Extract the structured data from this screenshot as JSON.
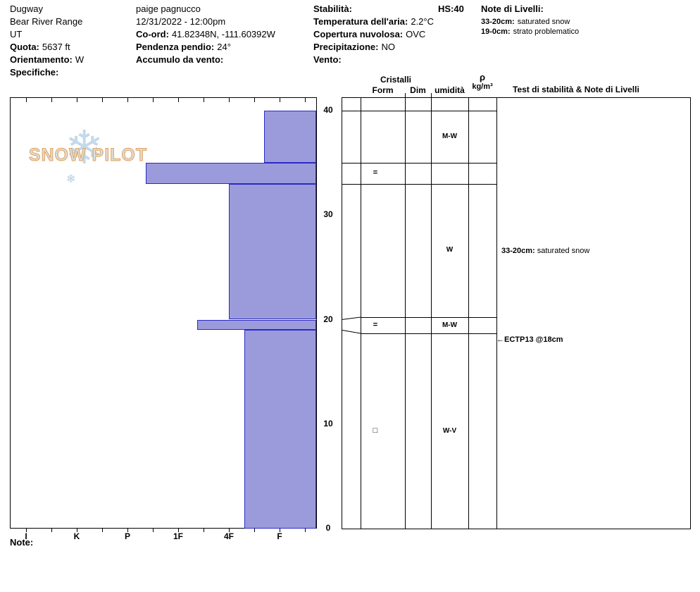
{
  "header": {
    "location": {
      "site": "Dugway",
      "range": "Bear River Range",
      "state": "UT",
      "elevation_label": "Quota:",
      "elevation": "5637 ft",
      "aspect_label": "Orientamento:",
      "aspect": "W",
      "specs_label": "Specifiche:"
    },
    "observation": {
      "observer": "paige pagnucco",
      "datetime": "12/31/2022 - 12:00pm",
      "coord_label": "Co-ord:",
      "coord": "41.82348N, -111.60392W",
      "slope_label": "Pendenza pendio:",
      "slope": "24°",
      "wind_loading_label": "Accumulo da vento:"
    },
    "conditions": {
      "stability_label": "Stabilità:",
      "hs_label": "HS:40",
      "air_temp_label": "Temperatura dell'aria:",
      "air_temp": "2.2°C",
      "sky_label": "Copertura nuvolosa:",
      "sky": "OVC",
      "precip_label": "Precipitazione:",
      "precip": "NO",
      "wind_label": "Vento:"
    },
    "layer_notes": {
      "title": "Note di Livelli:",
      "notes": [
        {
          "range": "33-20cm:",
          "text": "saturated snow"
        },
        {
          "range": "19-0cm:",
          "text": "strato problematico"
        }
      ]
    }
  },
  "table": {
    "crystals_group": "Cristalli",
    "form": "Form",
    "dim": "Dim",
    "moisture": "umidità",
    "density_symbol": "ρ",
    "density_unit": "kg/m³",
    "tests_header": "Test di stabilità & Note di Livelli"
  },
  "chart_data": {
    "type": "bar",
    "title": "Snow profile hand-hardness by depth",
    "depth_unit": "cm",
    "depth_max": 40,
    "depth_ticks": [
      0,
      10,
      20,
      30,
      40
    ],
    "hs_total_cm": 40,
    "hardness_categories": [
      "I",
      "K",
      "P",
      "1F",
      "4F",
      "F"
    ],
    "bar_fill": "#9b9bdc",
    "bar_border": "#2a2ac4",
    "layers": [
      {
        "top_cm": 40,
        "bottom_cm": 35,
        "hardness": "F+",
        "hardness_pos": 4.7,
        "grain_form_symbol": "",
        "grain_size": "",
        "moisture": "M-W",
        "density": ""
      },
      {
        "top_cm": 35,
        "bottom_cm": 33,
        "hardness": "P",
        "hardness_pos": 2.36,
        "grain_form_symbol": "=",
        "grain_size": "",
        "moisture": "",
        "density": ""
      },
      {
        "top_cm": 33,
        "bottom_cm": 20,
        "hardness": "4F",
        "hardness_pos": 4.0,
        "grain_form_symbol": "",
        "grain_size": "",
        "moisture": "W",
        "density": ""
      },
      {
        "top_cm": 20,
        "bottom_cm": 19,
        "hardness": "4F-",
        "hardness_pos": 3.38,
        "grain_form_symbol": "=",
        "grain_size": "",
        "moisture": "M-W",
        "density": ""
      },
      {
        "top_cm": 19,
        "bottom_cm": 0,
        "hardness": "4F+",
        "hardness_pos": 4.3,
        "grain_form_symbol": "□",
        "grain_size": "",
        "moisture": "W-V",
        "density": ""
      }
    ]
  },
  "annotations": {
    "layer_note": {
      "range": "33-20cm:",
      "text": "saturated snow",
      "depth_cm": 26.5
    },
    "test_note": {
      "arrow": "←",
      "text": "ECTP13 @18cm",
      "depth_cm": 18
    }
  },
  "watermark": {
    "text": "SNOW PILOT",
    "snowflake": "❄"
  },
  "footer": {
    "note_label": "Note:"
  }
}
